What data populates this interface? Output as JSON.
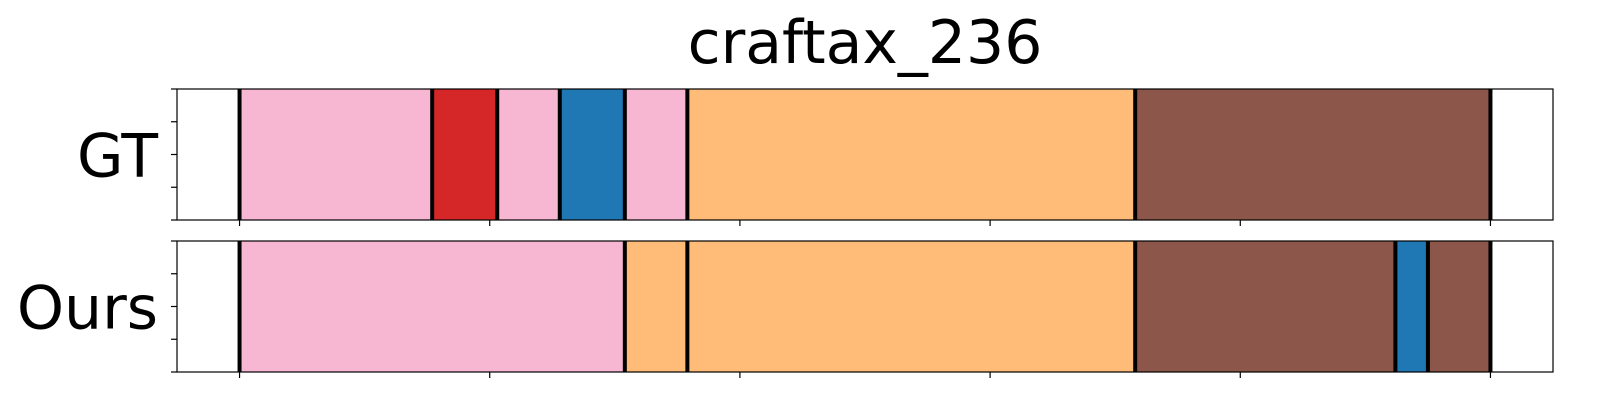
{
  "chart_data": {
    "type": "bar",
    "title": "craftax_236",
    "xlabel": "",
    "ylabel": "",
    "xlim": [
      -25,
      525
    ],
    "grid": false,
    "legend": "none",
    "x_ticks": [
      0,
      100,
      200,
      300,
      400,
      500
    ],
    "x_tick_labels_shown": false,
    "boundary_color": "#000000",
    "rows": [
      {
        "label": "GT",
        "segments": [
          {
            "start": 0,
            "end": 77,
            "color": "#f7b6d2"
          },
          {
            "start": 77,
            "end": 103,
            "color": "#d62728"
          },
          {
            "start": 103,
            "end": 128,
            "color": "#f7b6d2"
          },
          {
            "start": 128,
            "end": 154,
            "color": "#1f77b4"
          },
          {
            "start": 154,
            "end": 179,
            "color": "#f7b6d2"
          },
          {
            "start": 179,
            "end": 358,
            "color": "#ffbb78"
          },
          {
            "start": 358,
            "end": 500,
            "color": "#8c564b"
          }
        ]
      },
      {
        "label": "Ours",
        "segments": [
          {
            "start": 0,
            "end": 154,
            "color": "#f7b6d2"
          },
          {
            "start": 154,
            "end": 179,
            "color": "#ffbb78"
          },
          {
            "start": 179,
            "end": 358,
            "color": "#ffbb78"
          },
          {
            "start": 358,
            "end": 462,
            "color": "#8c564b"
          },
          {
            "start": 462,
            "end": 475,
            "color": "#1f77b4"
          },
          {
            "start": 475,
            "end": 500,
            "color": "#8c564b"
          }
        ]
      }
    ]
  }
}
